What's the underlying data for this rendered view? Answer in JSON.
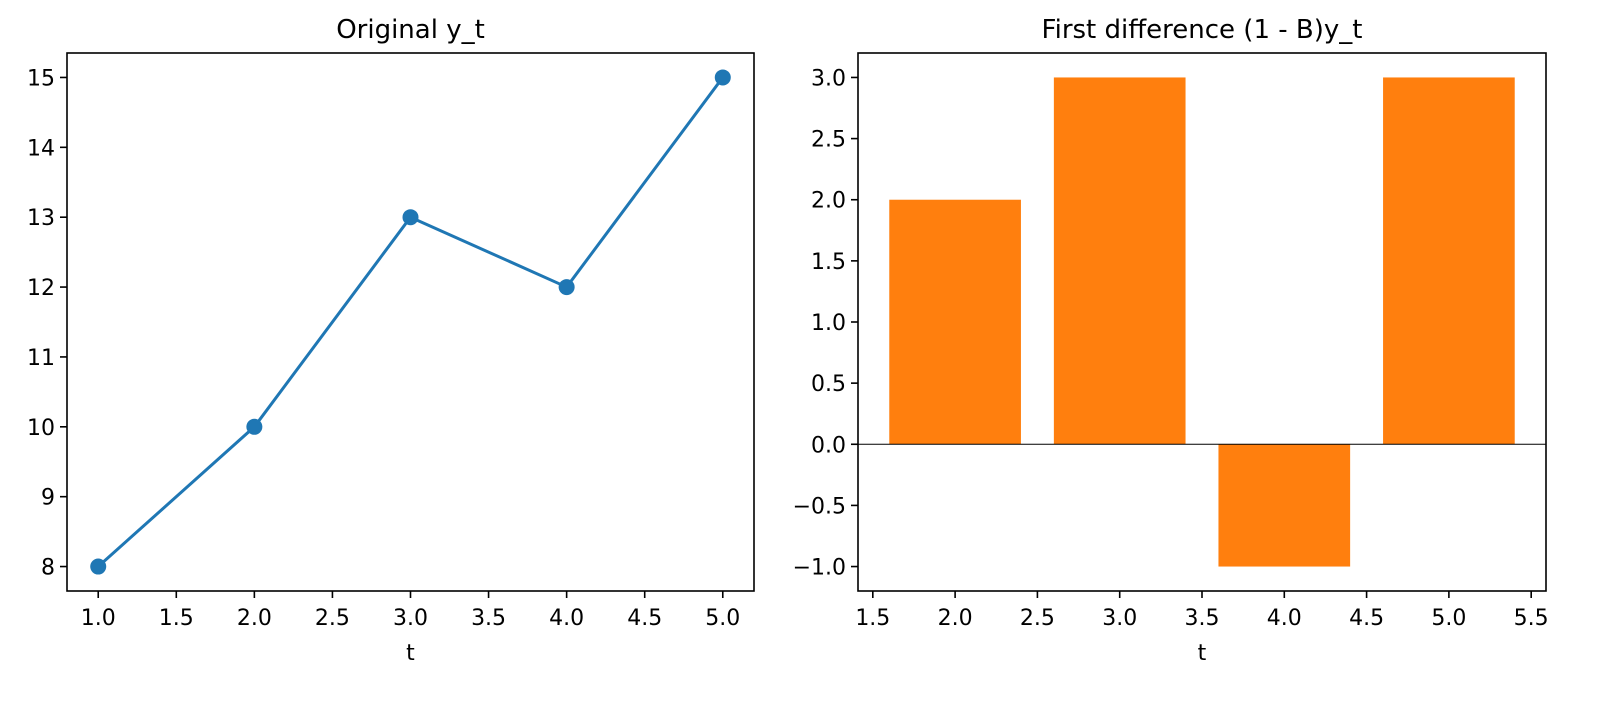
{
  "chart_data": [
    {
      "type": "line",
      "title": "Original y_t",
      "xlabel": "t",
      "ylabel": "",
      "x": [
        1,
        2,
        3,
        4,
        5
      ],
      "series": [
        {
          "values": [
            8,
            10,
            13,
            12,
            15
          ],
          "color": "#1f77b4",
          "marker": "circle"
        }
      ],
      "xlim": [
        0.8,
        5.2
      ],
      "ylim": [
        7.65,
        15.35
      ],
      "xticks": [
        "1.0",
        "1.5",
        "2.0",
        "2.5",
        "3.0",
        "3.5",
        "4.0",
        "4.5",
        "5.0"
      ],
      "yticks": [
        "8",
        "9",
        "10",
        "11",
        "12",
        "13",
        "14",
        "15"
      ],
      "grid": false,
      "legend": "none"
    },
    {
      "type": "bar",
      "title": "First difference (1 - B)y_t",
      "xlabel": "t",
      "ylabel": "",
      "x": [
        2,
        3,
        4,
        5
      ],
      "values": [
        2,
        3,
        -1,
        3
      ],
      "bar_width": 0.8,
      "color": "#ff7f0e",
      "zero_line": true,
      "xlim": [
        1.41,
        5.59
      ],
      "ylim": [
        -1.2,
        3.2
      ],
      "xticks": [
        "1.5",
        "2.0",
        "2.5",
        "3.0",
        "3.5",
        "4.0",
        "4.5",
        "5.0",
        "5.5"
      ],
      "yticks": [
        "−1.0",
        "−0.5",
        "0.0",
        "0.5",
        "1.0",
        "1.5",
        "2.0",
        "2.5",
        "3.0"
      ],
      "grid": false,
      "legend": "none"
    }
  ]
}
